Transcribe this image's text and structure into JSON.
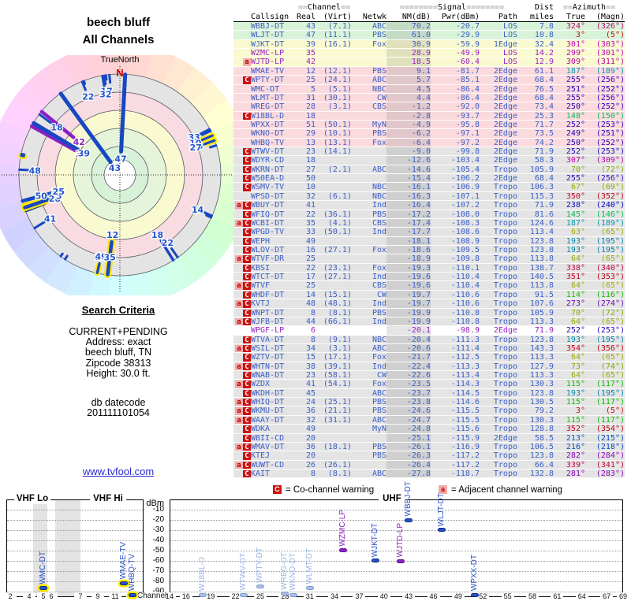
{
  "titles": {
    "line1": "beech bluff",
    "line2": "All Channels"
  },
  "search": {
    "heading": "Search Criteria",
    "lines": [
      "CURRENT+PENDING",
      "Address: exact",
      "beech bluff, TN",
      "Zipcode 38313",
      "Height: 30.0 ft."
    ],
    "db_label": "db datecode",
    "db_code": "201111101054",
    "link": "www.tvfool.com"
  },
  "legend": {
    "co_symbol": "C",
    "co_text": "= Co-channel warning",
    "adj_symbol": "a",
    "adj_text": "= Adjacent channel warning"
  },
  "colors": {
    "accent_blue": "#2750c8",
    "faded_blue": "#a8bfe8",
    "lp_purple": "#8a1fc4",
    "warn_red": "#cc1111",
    "warn_pink": "#f5a8a8",
    "vhf_ring_yellow": "#ffe800"
  },
  "chart_data": {
    "type": "table",
    "title": "beech bluff - All Channels",
    "group_headers": {
      "channel": "==Channel==",
      "signal": "========Signal========",
      "dist": "Dist",
      "azimuth": "==Azimuth=="
    },
    "columns": [
      "Callsign",
      "Real",
      "(Virt)",
      "Netwk",
      "NM(dB)",
      "Pwr(dBm)",
      "Path",
      "miles",
      "True",
      "(Magn)"
    ],
    "radar": {
      "north_label": "TrueNorth",
      "north_letter": "N"
    },
    "signal_chart": {
      "ylabel": "dBm",
      "xlabel": "Channel",
      "bands": [
        "VHF Lo",
        "VHF Hi",
        "UHF"
      ],
      "yticks": [
        -10,
        -20,
        -30,
        -40,
        -50,
        -60,
        -70,
        -80,
        -90
      ],
      "vhf_ticks": [
        2,
        4,
        5,
        6,
        7,
        9,
        11,
        13
      ],
      "uhf_ticks": [
        14,
        16,
        19,
        22,
        25,
        28,
        31,
        34,
        37,
        40,
        43,
        46,
        49,
        52,
        55,
        58,
        61,
        64,
        67,
        69
      ],
      "ylim": [
        -10,
        -90
      ]
    },
    "rows": [
      {
        "cs": "WBBJ-DT",
        "re": 43,
        "vi": "(7.1)",
        "nw": "ABC",
        "nm": "70.2",
        "pw": "-20.7",
        "pa": "LOS",
        "mi": "7.8",
        "az": 324,
        "mg": 326,
        "bg": "g",
        "wa": "",
        "lp": 0,
        "rl": 1,
        "pl": "s"
      },
      {
        "cs": "WLJT-DT",
        "re": 47,
        "vi": "(11.1)",
        "nw": "PBS",
        "nm": "61.0",
        "pw": "-29.9",
        "pa": "LOS",
        "mi": "10.8",
        "az": 3,
        "mg": 5,
        "bg": "g",
        "wa": "",
        "lp": 0,
        "rl": 1,
        "pl": "s"
      },
      {
        "cs": "WJKT-DT",
        "re": 39,
        "vi": "(16.1)",
        "nw": "Fox",
        "nm": "30.9",
        "pw": "-59.9",
        "pa": "1Edge",
        "mi": "32.4",
        "az": 301,
        "mg": 303,
        "bg": "y",
        "wa": "",
        "lp": 0,
        "rl": 1,
        "pl": "s"
      },
      {
        "cs": "WZMC-LP",
        "re": 35,
        "vi": "",
        "nw": "",
        "nm": "28.9",
        "pw": "-49.9",
        "pa": "LOS",
        "mi": "14.2",
        "az": 299,
        "mg": 301,
        "bg": "y",
        "wa": "",
        "lp": 1,
        "rl": 1,
        "pl": "s"
      },
      {
        "cs": "WJTD-LP",
        "re": 42,
        "vi": "",
        "nw": "",
        "nm": "18.5",
        "pw": "-60.4",
        "pa": "LOS",
        "mi": "12.9",
        "az": 309,
        "mg": 311,
        "bg": "y",
        "wa": "a",
        "lp": 1,
        "rl": 1,
        "pl": "s"
      },
      {
        "cs": "WMAE-TV",
        "re": 12,
        "vi": "(12.1)",
        "nw": "PBS",
        "nm": "9.1",
        "pw": "-81.7",
        "pa": "2Edge",
        "mi": "61.1",
        "az": 187,
        "mg": 189,
        "bg": "p",
        "wa": "",
        "lp": 0,
        "rl": 1,
        "pl": "s"
      },
      {
        "cs": "WPTY-DT",
        "re": 25,
        "vi": "(24.1)",
        "nw": "ABC",
        "nm": "5.7",
        "pw": "-85.1",
        "pa": "2Edge",
        "mi": "68.4",
        "az": 255,
        "mg": 256,
        "bg": "p",
        "wa": "C",
        "lp": 0,
        "rl": 1,
        "pl": "f"
      },
      {
        "cs": "WMC-DT",
        "re": 5,
        "vi": "(5.1)",
        "nw": "NBC",
        "nm": "4.5",
        "pw": "-86.4",
        "pa": "2Edge",
        "mi": "76.5",
        "az": 251,
        "mg": 252,
        "bg": "p",
        "wa": "",
        "lp": 0,
        "rl": 1,
        "pl": "s"
      },
      {
        "cs": "WLMT-DT",
        "re": 31,
        "vi": "(30.1)",
        "nw": "CW",
        "nm": "4.4",
        "pw": "-86.4",
        "pa": "2Edge",
        "mi": "68.4",
        "az": 255,
        "mg": 256,
        "bg": "p",
        "wa": "",
        "lp": 0,
        "rl": 1,
        "pl": "f"
      },
      {
        "cs": "WREG-DT",
        "re": 28,
        "vi": "(3.1)",
        "nw": "CBS",
        "nm": "-1.2",
        "pw": "-92.0",
        "pa": "2Edge",
        "mi": "73.4",
        "az": 250,
        "mg": 252,
        "bg": "p",
        "wa": "",
        "lp": 0,
        "rl": 1,
        "pl": "f"
      },
      {
        "cs": "W18BL-D",
        "re": 18,
        "vi": "",
        "nw": "",
        "nm": "-2.8",
        "pw": "-93.7",
        "pa": "2Edge",
        "mi": "25.3",
        "az": 148,
        "mg": 150,
        "bg": "p",
        "wa": "C",
        "lp": 0,
        "rl": 1,
        "pl": "f"
      },
      {
        "cs": "WPXX-DT",
        "re": 51,
        "vi": "(50.1)",
        "nw": "MyN",
        "nm": "-4.9",
        "pw": "-95.8",
        "pa": "2Edge",
        "mi": "71.7",
        "az": 252,
        "mg": 253,
        "bg": "p",
        "wa": "",
        "lp": 0,
        "rl": 0,
        "pl": "s"
      },
      {
        "cs": "WKNO-DT",
        "re": 29,
        "vi": "(10.1)",
        "nw": "PBS",
        "nm": "-6.2",
        "pw": "-97.1",
        "pa": "2Edge",
        "mi": "73.5",
        "az": 249,
        "mg": 251,
        "bg": "p",
        "wa": "",
        "lp": 0,
        "rl": 0,
        "pl": "f"
      },
      {
        "cs": "WHBQ-TV",
        "re": 13,
        "vi": "(13.1)",
        "nw": "Fox",
        "nm": "-6.4",
        "pw": "-97.2",
        "pa": "2Edge",
        "mi": "74.2",
        "az": 250,
        "mg": 252,
        "bg": "p",
        "wa": "",
        "lp": 0,
        "rl": 0,
        "pl": "s"
      },
      {
        "cs": "WTWV-DT",
        "re": 23,
        "vi": "(14.1)",
        "nw": "",
        "nm": "-9.0",
        "pw": "-99.8",
        "pa": "2Edge",
        "mi": "71.9",
        "az": 252,
        "mg": 253,
        "bg": "gr",
        "wa": "C",
        "lp": 0,
        "rl": 0,
        "pl": "f"
      },
      {
        "cs": "WDYR-CD",
        "re": 18,
        "vi": "",
        "nw": "",
        "nm": "-12.6",
        "pw": "-103.4",
        "pa": "2Edge",
        "mi": "58.3",
        "az": 307,
        "mg": 309,
        "bg": "gr",
        "wa": "C",
        "lp": 0,
        "rl": 1,
        "pl": ""
      },
      {
        "cs": "WKRN-DT",
        "re": 27,
        "vi": "(2.1)",
        "nw": "ABC",
        "nm": "-14.6",
        "pw": "-105.4",
        "pa": "Tropo",
        "mi": "105.9",
        "az": 70,
        "mg": 72,
        "bg": "gr",
        "wa": "C",
        "lp": 0,
        "rl": 1,
        "pl": ""
      },
      {
        "cs": "W50EA-D",
        "re": 50,
        "vi": "",
        "nw": "",
        "nm": "-15.4",
        "pw": "-106.2",
        "pa": "2Edge",
        "mi": "68.4",
        "az": 255,
        "mg": 256,
        "bg": "gr",
        "wa": "C",
        "lp": 0,
        "rl": 1,
        "pl": ""
      },
      {
        "cs": "WSMV-TV",
        "re": 10,
        "vi": "",
        "nw": "NBC",
        "nm": "-16.1",
        "pw": "-106.9",
        "pa": "Tropo",
        "mi": "106.3",
        "az": 67,
        "mg": 69,
        "bg": "gr",
        "wa": "C",
        "lp": 0,
        "rl": 1,
        "pl": ""
      },
      {
        "cs": "WPSD-DT",
        "re": 32,
        "vi": "(6.1)",
        "nw": "NBC",
        "nm": "-16.3",
        "pw": "-107.1",
        "pa": "Tropo",
        "mi": "115.3",
        "az": 350,
        "mg": 352,
        "bg": "gr",
        "wa": "",
        "lp": 0,
        "rl": 1,
        "pl": ""
      },
      {
        "cs": "WBUY-DT",
        "re": 41,
        "vi": "",
        "nw": "Ind",
        "nm": "-16.4",
        "pw": "-107.2",
        "pa": "Tropo",
        "mi": "71.9",
        "az": 238,
        "mg": 240,
        "bg": "gr",
        "wa": "aC",
        "lp": 0,
        "rl": 1,
        "pl": ""
      },
      {
        "cs": "WFIQ-DT",
        "re": 22,
        "vi": "(36.1)",
        "nw": "PBS",
        "nm": "-17.2",
        "pw": "-108.0",
        "pa": "Tropo",
        "mi": "81.6",
        "az": 145,
        "mg": 146,
        "bg": "gr",
        "wa": "C",
        "lp": 0,
        "rl": 1,
        "pl": ""
      },
      {
        "cs": "WCBI-DT",
        "re": 35,
        "vi": "(4.1)",
        "nw": "CBS",
        "nm": "-17.4",
        "pw": "-108.3",
        "pa": "Tropo",
        "mi": "124.6",
        "az": 187,
        "mg": 189,
        "bg": "gr",
        "wa": "aC",
        "lp": 0,
        "rl": 1,
        "pl": ""
      },
      {
        "cs": "WPGD-TV",
        "re": 33,
        "vi": "(50.1)",
        "nw": "Ind",
        "nm": "-17.7",
        "pw": "-108.6",
        "pa": "Tropo",
        "mi": "113.4",
        "az": 63,
        "mg": 65,
        "bg": "gr",
        "wa": "C",
        "lp": 0,
        "rl": 1,
        "pl": ""
      },
      {
        "cs": "WEPH",
        "re": 49,
        "vi": "",
        "nw": "",
        "nm": "-18.1",
        "pw": "-108.9",
        "pa": "Tropo",
        "mi": "123.8",
        "az": 193,
        "mg": 195,
        "bg": "gr",
        "wa": "C",
        "lp": 0,
        "rl": 1,
        "pl": ""
      },
      {
        "cs": "WLOV-DT",
        "re": 16,
        "vi": "(27.1)",
        "nw": "Fox",
        "nm": "-18.6",
        "pw": "-109.5",
        "pa": "Tropo",
        "mi": "123.8",
        "az": 193,
        "mg": 195,
        "bg": "gr",
        "wa": "C",
        "lp": 0,
        "rl": 1,
        "pl": ""
      },
      {
        "cs": "WTVF-DR",
        "re": 25,
        "vi": "",
        "nw": "",
        "nm": "-18.9",
        "pw": "-109.8",
        "pa": "Tropo",
        "mi": "113.8",
        "az": 64,
        "mg": 65,
        "bg": "gr",
        "wa": "aC",
        "lp": 0,
        "rl": 0,
        "pl": ""
      },
      {
        "cs": "KBSI",
        "re": 22,
        "vi": "(23.1)",
        "nw": "Fox",
        "nm": "-19.3",
        "pw": "-110.1",
        "pa": "Tropo",
        "mi": "138.7",
        "az": 338,
        "mg": 340,
        "bg": "gr",
        "wa": "C",
        "lp": 0,
        "rl": 1,
        "pl": ""
      },
      {
        "cs": "WTCT-DT",
        "re": 17,
        "vi": "(27.1)",
        "nw": "Ind",
        "nm": "-19.6",
        "pw": "-110.4",
        "pa": "Tropo",
        "mi": "140.5",
        "az": 351,
        "mg": 353,
        "bg": "gr",
        "wa": "C",
        "lp": 0,
        "rl": 1,
        "pl": ""
      },
      {
        "cs": "WTVF",
        "re": 25,
        "vi": "",
        "nw": "CBS",
        "nm": "-19.6",
        "pw": "-110.4",
        "pa": "Tropo",
        "mi": "113.8",
        "az": 64,
        "mg": 65,
        "bg": "gr",
        "wa": "aC",
        "lp": 0,
        "rl": 0,
        "pl": ""
      },
      {
        "cs": "WHDF-DT",
        "re": 14,
        "vi": "(15.1)",
        "nw": "CW",
        "nm": "-19.7",
        "pw": "-110.6",
        "pa": "Tropo",
        "mi": "91.5",
        "az": 114,
        "mg": 116,
        "bg": "gr",
        "wa": "C",
        "lp": 0,
        "rl": 1,
        "pl": ""
      },
      {
        "cs": "KVTJ",
        "re": 48,
        "vi": "(48.1)",
        "nw": "Ind",
        "nm": "-19.7",
        "pw": "-110.6",
        "pa": "Tropo",
        "mi": "107.6",
        "az": 273,
        "mg": 274,
        "bg": "gr",
        "wa": "aC",
        "lp": 0,
        "rl": 1,
        "pl": ""
      },
      {
        "cs": "WNPT-DT",
        "re": 8,
        "vi": "(8.1)",
        "nw": "PBS",
        "nm": "-19.9",
        "pw": "-110.8",
        "pa": "Tropo",
        "mi": "105.9",
        "az": 70,
        "mg": 72,
        "bg": "gr",
        "wa": "C",
        "lp": 0,
        "rl": 1,
        "pl": ""
      },
      {
        "cs": "WJFB-DT",
        "re": 44,
        "vi": "(66.1)",
        "nw": "Ind",
        "nm": "-19.9",
        "pw": "-110.8",
        "pa": "Tropo",
        "mi": "113.3",
        "az": 64,
        "mg": 65,
        "bg": "gr",
        "wa": "aC",
        "lp": 0,
        "rl": 0,
        "pl": ""
      },
      {
        "cs": "WPGF-LP",
        "re": 6,
        "vi": "",
        "nw": "",
        "nm": "-20.1",
        "pw": "-98.9",
        "pa": "2Edge",
        "mi": "71.9",
        "az": 252,
        "mg": 253,
        "bg": "w",
        "wa": "",
        "lp": 1,
        "rl": 0,
        "pl": ""
      },
      {
        "cs": "WTVA-DT",
        "re": 8,
        "vi": "(9.1)",
        "nw": "NBC",
        "nm": "-20.4",
        "pw": "-111.3",
        "pa": "Tropo",
        "mi": "123.8",
        "az": 193,
        "mg": 195,
        "bg": "gr",
        "wa": "C",
        "lp": 0,
        "rl": 0,
        "pl": ""
      },
      {
        "cs": "WSIL-DT",
        "re": 34,
        "vi": "(3.1)",
        "nw": "ABC",
        "nm": "-20.6",
        "pw": "-111.4",
        "pa": "Tropo",
        "mi": "143.3",
        "az": 354,
        "mg": 356,
        "bg": "gr",
        "wa": "aC",
        "lp": 0,
        "rl": 0,
        "pl": ""
      },
      {
        "cs": "WZTV-DT",
        "re": 15,
        "vi": "(17.1)",
        "nw": "Fox",
        "nm": "-21.7",
        "pw": "-112.5",
        "pa": "Tropo",
        "mi": "113.3",
        "az": 64,
        "mg": 65,
        "bg": "gr",
        "wa": "C",
        "lp": 0,
        "rl": 0,
        "pl": ""
      },
      {
        "cs": "WHTN-DT",
        "re": 38,
        "vi": "(39.1)",
        "nw": "Ind",
        "nm": "-22.4",
        "pw": "-113.3",
        "pa": "Tropo",
        "mi": "127.9",
        "az": 73,
        "mg": 74,
        "bg": "gr",
        "wa": "aC",
        "lp": 0,
        "rl": 0,
        "pl": ""
      },
      {
        "cs": "WNAB-DT",
        "re": 23,
        "vi": "(58.1)",
        "nw": "CW",
        "nm": "-22.6",
        "pw": "-113.4",
        "pa": "Tropo",
        "mi": "113.3",
        "az": 64,
        "mg": 65,
        "bg": "gr",
        "wa": "C",
        "lp": 0,
        "rl": 0,
        "pl": ""
      },
      {
        "cs": "WZDX",
        "re": 41,
        "vi": "(54.1)",
        "nw": "Fox",
        "nm": "-23.5",
        "pw": "-114.3",
        "pa": "Tropo",
        "mi": "130.3",
        "az": 115,
        "mg": 117,
        "bg": "gr",
        "wa": "aC",
        "lp": 0,
        "rl": 0,
        "pl": ""
      },
      {
        "cs": "WKDH-DT",
        "re": 45,
        "vi": "",
        "nw": "ABC",
        "nm": "-23.7",
        "pw": "-114.5",
        "pa": "Tropo",
        "mi": "123.8",
        "az": 193,
        "mg": 195,
        "bg": "gr",
        "wa": "C",
        "lp": 0,
        "rl": 0,
        "pl": ""
      },
      {
        "cs": "WHIQ-DT",
        "re": 24,
        "vi": "(25.1)",
        "nw": "PBS",
        "nm": "-23.8",
        "pw": "-114.6",
        "pa": "Tropo",
        "mi": "130.5",
        "az": 115,
        "mg": 117,
        "bg": "gr",
        "wa": "aC",
        "lp": 0,
        "rl": 0,
        "pl": ""
      },
      {
        "cs": "WKMU-DT",
        "re": 36,
        "vi": "(21.1)",
        "nw": "PBS",
        "nm": "-24.6",
        "pw": "-115.5",
        "pa": "Tropo",
        "mi": "79.2",
        "az": 3,
        "mg": 5,
        "bg": "gr",
        "wa": "aC",
        "lp": 0,
        "rl": 0,
        "pl": ""
      },
      {
        "cs": "WAAY-DT",
        "re": 32,
        "vi": "(31.1)",
        "nw": "ABC",
        "nm": "-24.7",
        "pw": "-115.5",
        "pa": "Tropo",
        "mi": "130.3",
        "az": 115,
        "mg": 117,
        "bg": "gr",
        "wa": "aC",
        "lp": 0,
        "rl": 0,
        "pl": ""
      },
      {
        "cs": "WDKA",
        "re": 49,
        "vi": "",
        "nw": "MyN",
        "nm": "-24.8",
        "pw": "-115.6",
        "pa": "Tropo",
        "mi": "128.8",
        "az": 352,
        "mg": 354,
        "bg": "gr",
        "wa": "C",
        "lp": 0,
        "rl": 0,
        "pl": ""
      },
      {
        "cs": "WBII-CD",
        "re": 20,
        "vi": "",
        "nw": "",
        "nm": "-25.1",
        "pw": "-115.9",
        "pa": "2Edge",
        "mi": "58.5",
        "az": 213,
        "mg": 215,
        "bg": "gr",
        "wa": "C",
        "lp": 0,
        "rl": 0,
        "pl": ""
      },
      {
        "cs": "WMAV-DT",
        "re": 36,
        "vi": "(18.1)",
        "nw": "PBS",
        "nm": "-26.1",
        "pw": "-116.9",
        "pa": "Tropo",
        "mi": "106.5",
        "az": 216,
        "mg": 218,
        "bg": "gr",
        "wa": "aC",
        "lp": 0,
        "rl": 0,
        "pl": ""
      },
      {
        "cs": "KTEJ",
        "re": 20,
        "vi": "",
        "nw": "PBS",
        "nm": "-26.3",
        "pw": "-117.2",
        "pa": "Tropo",
        "mi": "123.8",
        "az": 282,
        "mg": 284,
        "bg": "gr",
        "wa": "C",
        "lp": 0,
        "rl": 0,
        "pl": ""
      },
      {
        "cs": "WUWT-CD",
        "re": 26,
        "vi": "(26.1)",
        "nw": "",
        "nm": "-26.4",
        "pw": "-117.2",
        "pa": "Tropo",
        "mi": "66.4",
        "az": 339,
        "mg": 341,
        "bg": "gr",
        "wa": "aC",
        "lp": 0,
        "rl": 0,
        "pl": ""
      },
      {
        "cs": "KAIT",
        "re": 8,
        "vi": "(8.1)",
        "nw": "ABC",
        "nm": "-27.8",
        "pw": "-118.7",
        "pa": "Tropo",
        "mi": "132.8",
        "az": 281,
        "mg": 283,
        "bg": "gr",
        "wa": "C",
        "lp": 0,
        "rl": 0,
        "pl": ""
      }
    ]
  }
}
